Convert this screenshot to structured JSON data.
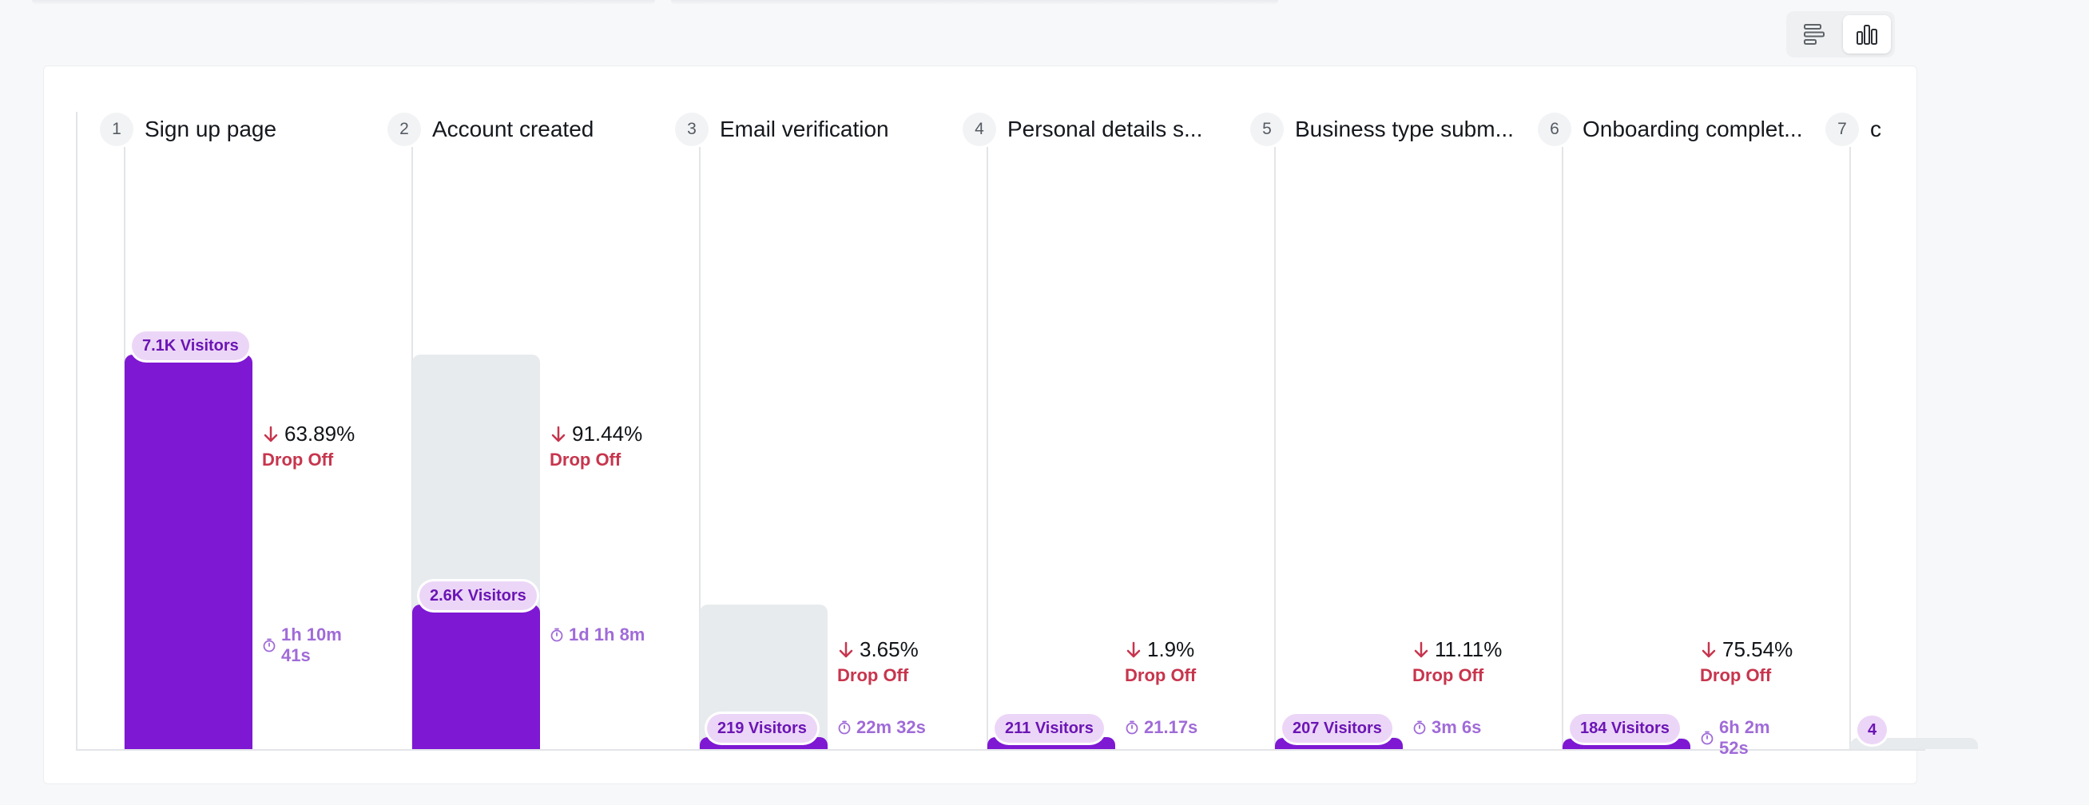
{
  "view_toggle": {
    "options": [
      {
        "name": "horizontal-bars",
        "icon": "horizontal-bars-icon",
        "active": false
      },
      {
        "name": "vertical-bars",
        "icon": "vertical-bars-icon",
        "active": true
      }
    ]
  },
  "colors": {
    "bar_fill": "#7e18d3",
    "bar_background": "#e8ebee",
    "visitor_badge_bg": "#ecd6f7",
    "visitor_badge_text": "#6b15b5",
    "drop_off": "#c7354d",
    "time": "#a06bd8"
  },
  "chart_data": {
    "type": "bar",
    "categories": [
      "Sign up page",
      "Account created",
      "Email verification",
      "Personal details s...",
      "Business type subm...",
      "Onboarding complet...",
      ""
    ],
    "series": [
      {
        "values": [
          7100,
          2600,
          219,
          211,
          207,
          184,
          null
        ]
      }
    ],
    "ylim": [
      0,
      7100
    ],
    "steps": [
      {
        "number": "1",
        "title": "Sign up page",
        "visitors": 7100,
        "visitors_label": "7.1K Visitors",
        "drop_off": "63.89%",
        "drop_off_label": "Drop Off",
        "time": "1h 10m 41s"
      },
      {
        "number": "2",
        "title": "Account created",
        "visitors": 2600,
        "visitors_label": "2.6K Visitors",
        "drop_off": "91.44%",
        "drop_off_label": "Drop Off",
        "time": "1d 1h 8m"
      },
      {
        "number": "3",
        "title": "Email verification",
        "visitors": 219,
        "visitors_label": "219 Visitors",
        "drop_off": "3.65%",
        "drop_off_label": "Drop Off",
        "time": "22m 32s"
      },
      {
        "number": "4",
        "title": "Personal details s...",
        "visitors": 211,
        "visitors_label": "211 Visitors",
        "drop_off": "1.9%",
        "drop_off_label": "Drop Off",
        "time": "21.17s"
      },
      {
        "number": "5",
        "title": "Business type subm...",
        "visitors": 207,
        "visitors_label": "207 Visitors",
        "drop_off": "11.11%",
        "drop_off_label": "Drop Off",
        "time": "3m 6s"
      },
      {
        "number": "6",
        "title": "Onboarding complet...",
        "visitors": 184,
        "visitors_label": "184 Visitors",
        "drop_off": "75.54%",
        "drop_off_label": "Drop Off",
        "time": "6h 2m 52s"
      },
      {
        "number": "7",
        "title": "c",
        "visitors": null,
        "visitors_label": "4",
        "drop_off": "",
        "drop_off_label": "",
        "time": ""
      }
    ]
  }
}
